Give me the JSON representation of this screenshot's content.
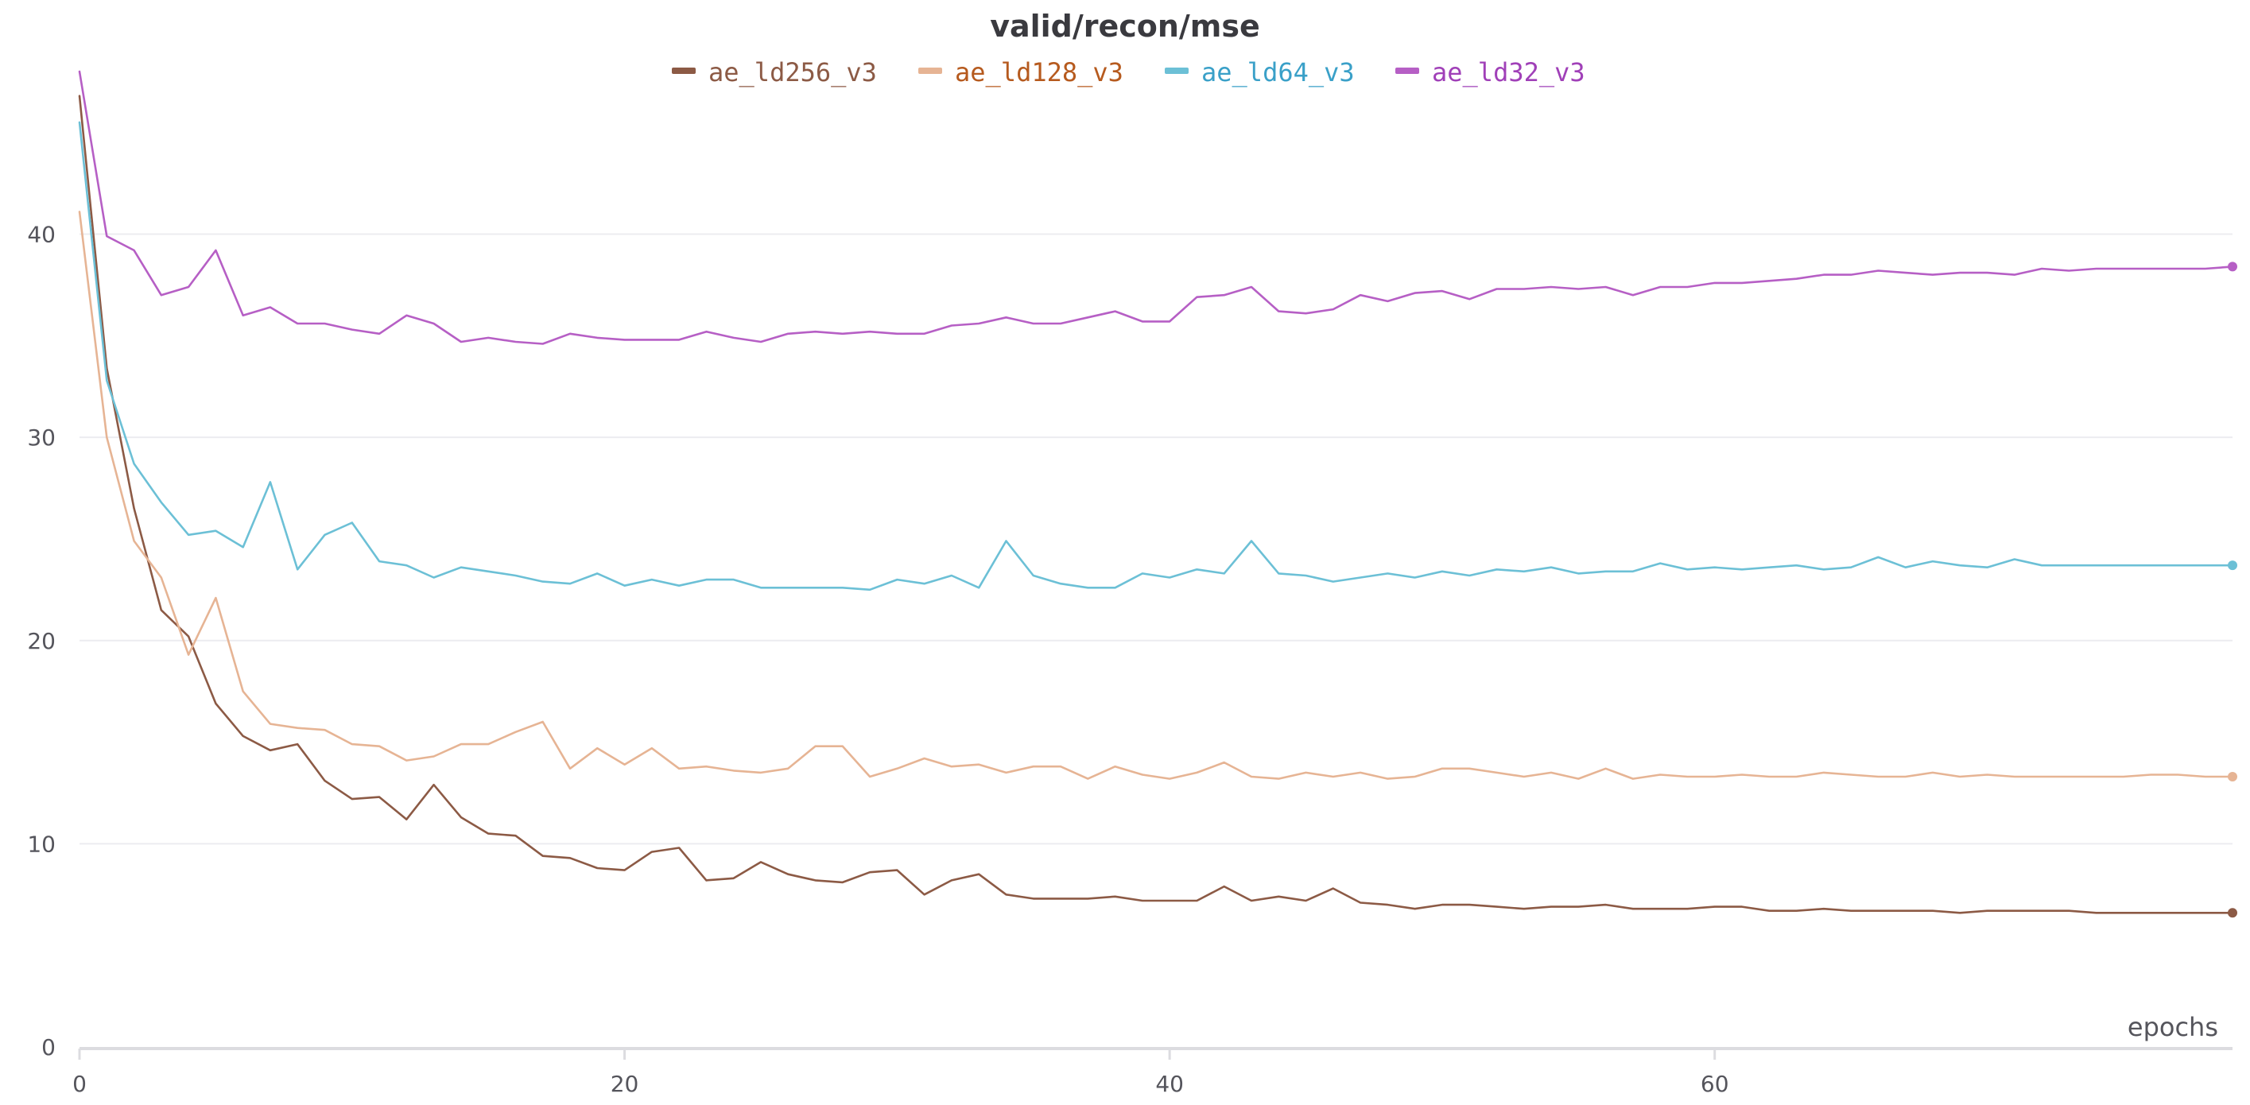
{
  "chart_data": {
    "type": "line",
    "title": "valid/recon/mse",
    "xlabel": "epochs",
    "ylabel": "",
    "xlim": [
      0,
      79
    ],
    "ylim": [
      0,
      48
    ],
    "x_ticks": [
      0,
      20,
      40,
      60
    ],
    "y_ticks": [
      0,
      10,
      20,
      30,
      40
    ],
    "grid": true,
    "legend_position": "top-center",
    "series": [
      {
        "name": "ae_ld256_v3",
        "color": "#8c5a45",
        "text_color": "#8c5a45",
        "values": [
          46.8,
          33.4,
          26.5,
          21.5,
          20.2,
          16.9,
          15.3,
          14.6,
          14.9,
          13.1,
          12.2,
          12.3,
          11.2,
          12.9,
          11.3,
          10.5,
          10.4,
          9.4,
          9.3,
          8.8,
          8.7,
          9.6,
          9.8,
          8.2,
          8.3,
          9.1,
          8.5,
          8.2,
          8.1,
          8.6,
          8.7,
          7.5,
          8.2,
          8.5,
          7.5,
          7.3,
          7.3,
          7.3,
          7.4,
          7.2,
          7.2,
          7.2,
          7.9,
          7.2,
          7.4,
          7.2,
          7.8,
          7.1,
          7.0,
          6.8,
          7.0,
          7.0,
          6.9,
          6.8,
          6.9,
          6.9,
          7.0,
          6.8,
          6.8,
          6.8,
          6.9,
          6.9,
          6.7,
          6.7,
          6.8,
          6.7,
          6.7,
          6.7,
          6.7,
          6.6,
          6.7,
          6.7,
          6.7,
          6.7,
          6.6,
          6.6,
          6.6,
          6.6,
          6.6,
          6.6
        ]
      },
      {
        "name": "ae_ld128_v3",
        "color": "#e6b494",
        "text_color": "#b65a1e",
        "values": [
          41.1,
          30.0,
          24.9,
          23.1,
          19.3,
          22.1,
          17.5,
          15.9,
          15.7,
          15.6,
          14.9,
          14.8,
          14.1,
          14.3,
          14.9,
          14.9,
          15.5,
          16.0,
          13.7,
          14.7,
          13.9,
          14.7,
          13.7,
          13.8,
          13.6,
          13.5,
          13.7,
          14.8,
          14.8,
          13.3,
          13.7,
          14.2,
          13.8,
          13.9,
          13.5,
          13.8,
          13.8,
          13.2,
          13.8,
          13.4,
          13.2,
          13.5,
          14.0,
          13.3,
          13.2,
          13.5,
          13.3,
          13.5,
          13.2,
          13.3,
          13.7,
          13.7,
          13.5,
          13.3,
          13.5,
          13.2,
          13.7,
          13.2,
          13.4,
          13.3,
          13.3,
          13.4,
          13.3,
          13.3,
          13.5,
          13.4,
          13.3,
          13.3,
          13.5,
          13.3,
          13.4,
          13.3,
          13.3,
          13.3,
          13.3,
          13.3,
          13.4,
          13.4,
          13.3,
          13.3
        ]
      },
      {
        "name": "ae_ld64_v3",
        "color": "#6cc0d6",
        "text_color": "#3aa0c8",
        "values": [
          45.5,
          32.8,
          28.7,
          26.8,
          25.2,
          25.4,
          24.6,
          27.8,
          23.5,
          25.2,
          25.8,
          23.9,
          23.7,
          23.1,
          23.6,
          23.4,
          23.2,
          22.9,
          22.8,
          23.3,
          22.7,
          23.0,
          22.7,
          23.0,
          23.0,
          22.6,
          22.6,
          22.6,
          22.6,
          22.5,
          23.0,
          22.8,
          23.2,
          22.6,
          24.9,
          23.2,
          22.8,
          22.6,
          22.6,
          23.3,
          23.1,
          23.5,
          23.3,
          24.9,
          23.3,
          23.2,
          22.9,
          23.1,
          23.3,
          23.1,
          23.4,
          23.2,
          23.5,
          23.4,
          23.6,
          23.3,
          23.4,
          23.4,
          23.8,
          23.5,
          23.6,
          23.5,
          23.6,
          23.7,
          23.5,
          23.6,
          24.1,
          23.6,
          23.9,
          23.7,
          23.6,
          24.0,
          23.7,
          23.7,
          23.7,
          23.7,
          23.7,
          23.7,
          23.7,
          23.7
        ]
      },
      {
        "name": "ae_ld32_v3",
        "color": "#b65fc5",
        "text_color": "#a040b8",
        "values": [
          48.0,
          39.9,
          39.2,
          37.0,
          37.4,
          39.2,
          36.0,
          36.4,
          35.6,
          35.6,
          35.3,
          35.1,
          36.0,
          35.6,
          34.7,
          34.9,
          34.7,
          34.6,
          35.1,
          34.9,
          34.8,
          34.8,
          34.8,
          35.2,
          34.9,
          34.7,
          35.1,
          35.2,
          35.1,
          35.2,
          35.1,
          35.1,
          35.5,
          35.6,
          35.9,
          35.6,
          35.6,
          35.9,
          36.2,
          35.7,
          35.7,
          36.9,
          37.0,
          37.4,
          36.2,
          36.1,
          36.3,
          37.0,
          36.7,
          37.1,
          37.2,
          36.8,
          37.3,
          37.3,
          37.4,
          37.3,
          37.4,
          37.0,
          37.4,
          37.4,
          37.6,
          37.6,
          37.7,
          37.8,
          38.0,
          38.0,
          38.2,
          38.1,
          38.0,
          38.1,
          38.1,
          38.0,
          38.3,
          38.2,
          38.3,
          38.3,
          38.3,
          38.3,
          38.3,
          38.4
        ]
      }
    ]
  }
}
